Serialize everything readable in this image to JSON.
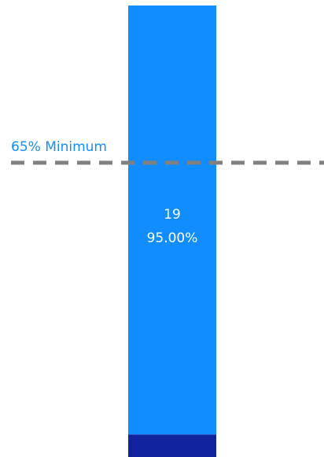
{
  "chart_data": {
    "type": "bar",
    "stacked": true,
    "value_scale": "percent",
    "ylim": [
      0,
      100
    ],
    "segments": [
      {
        "value": 5,
        "color": "#12239E"
      },
      {
        "value": 95,
        "color": "#118DFF",
        "label_count": "19",
        "label_percent": "95.00%"
      }
    ],
    "reference_line": {
      "value": 65,
      "label": "65% Minimum",
      "color": "#808080",
      "style": "dashed",
      "label_color": "#118DFF"
    }
  }
}
